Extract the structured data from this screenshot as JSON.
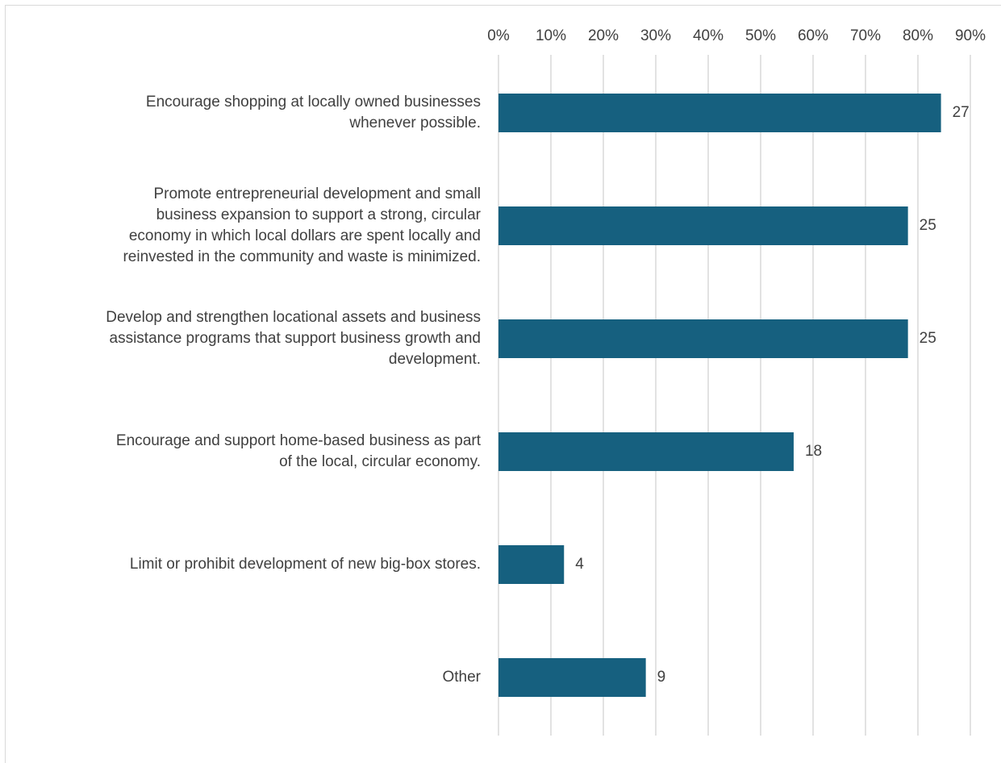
{
  "chart_data": {
    "type": "bar",
    "orientation": "horizontal",
    "categories": [
      [
        "Encourage shopping at locally owned businesses",
        "whenever possible."
      ],
      [
        "Promote entrepreneurial development and small",
        "business expansion to support a strong, circular",
        "economy in which local dollars are spent locally and",
        "reinvested in the community and waste is minimized."
      ],
      [
        "Develop and strengthen locational assets and business",
        "assistance programs that support business growth and",
        "development."
      ],
      [
        "Encourage and support home-based business as part",
        "of the local, circular economy."
      ],
      [
        "Limit or prohibit development of new big-box stores."
      ],
      [
        "Other"
      ]
    ],
    "values_percent": [
      84.4,
      78.1,
      78.1,
      56.3,
      12.5,
      28.1
    ],
    "data_labels": [
      "27",
      "25",
      "25",
      "18",
      "4",
      "9"
    ],
    "xlim": [
      0,
      90
    ],
    "x_ticks": [
      "0%",
      "10%",
      "20%",
      "30%",
      "40%",
      "50%",
      "60%",
      "70%",
      "80%",
      "90%"
    ],
    "x_axis_position": "top",
    "grid": true,
    "legend": "none",
    "bar_color": "#16607f"
  }
}
